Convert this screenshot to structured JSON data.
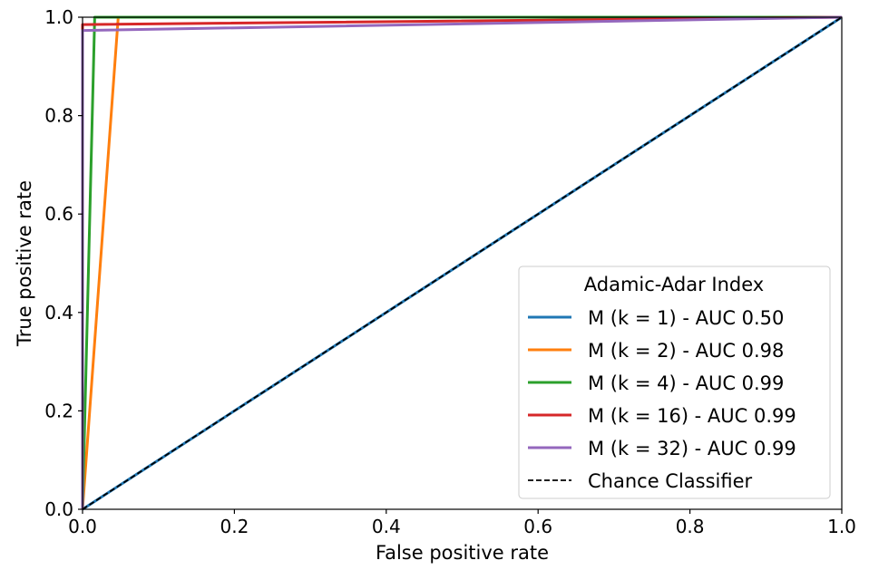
{
  "chart_data": {
    "type": "line",
    "title": "",
    "xlabel": "False positive rate",
    "ylabel": "True positive rate",
    "xlim": [
      0.0,
      1.0
    ],
    "ylim": [
      0.0,
      1.0
    ],
    "xticks": [
      "0.0",
      "0.2",
      "0.4",
      "0.6",
      "0.8",
      "1.0"
    ],
    "yticks": [
      "0.0",
      "0.2",
      "0.4",
      "0.6",
      "0.8",
      "1.0"
    ],
    "grid": false,
    "legend": {
      "title": "Adamic-Adar Index",
      "placement": "lower-right"
    },
    "series": [
      {
        "name": "M (k = 1) - AUC 0.50",
        "color": "#1f77b4",
        "x": [
          0.0,
          0.1,
          0.2,
          0.3,
          0.4,
          0.5,
          0.6,
          0.7,
          0.8,
          0.9,
          1.0
        ],
        "y": [
          0.0,
          0.1,
          0.2,
          0.3,
          0.4,
          0.5,
          0.6,
          0.7,
          0.8,
          0.9,
          1.0
        ]
      },
      {
        "name": "M (k = 2) - AUC 0.98",
        "color": "#ff7f0e",
        "x": [
          0.0,
          0.047,
          1.0
        ],
        "y": [
          0.0,
          1.0,
          1.0
        ]
      },
      {
        "name": "M (k = 4) - AUC 0.99",
        "color": "#2ca02c",
        "x": [
          0.0,
          0.016,
          1.0
        ],
        "y": [
          0.0,
          1.0,
          1.0
        ]
      },
      {
        "name": "M (k = 16) - AUC 0.99",
        "color": "#d62728",
        "x": [
          0.0,
          0.0,
          0.001,
          1.0
        ],
        "y": [
          0.0,
          0.985,
          0.985,
          1.0
        ]
      },
      {
        "name": "M (k = 32) - AUC 0.99",
        "color": "#9467bd",
        "x": [
          0.0,
          0.0,
          0.001,
          1.0
        ],
        "y": [
          0.0,
          0.973,
          0.973,
          1.0
        ]
      },
      {
        "name": "Chance Classifier",
        "color": "#000000",
        "dashed": true,
        "x": [
          0.0,
          1.0
        ],
        "y": [
          0.0,
          1.0
        ]
      }
    ]
  }
}
